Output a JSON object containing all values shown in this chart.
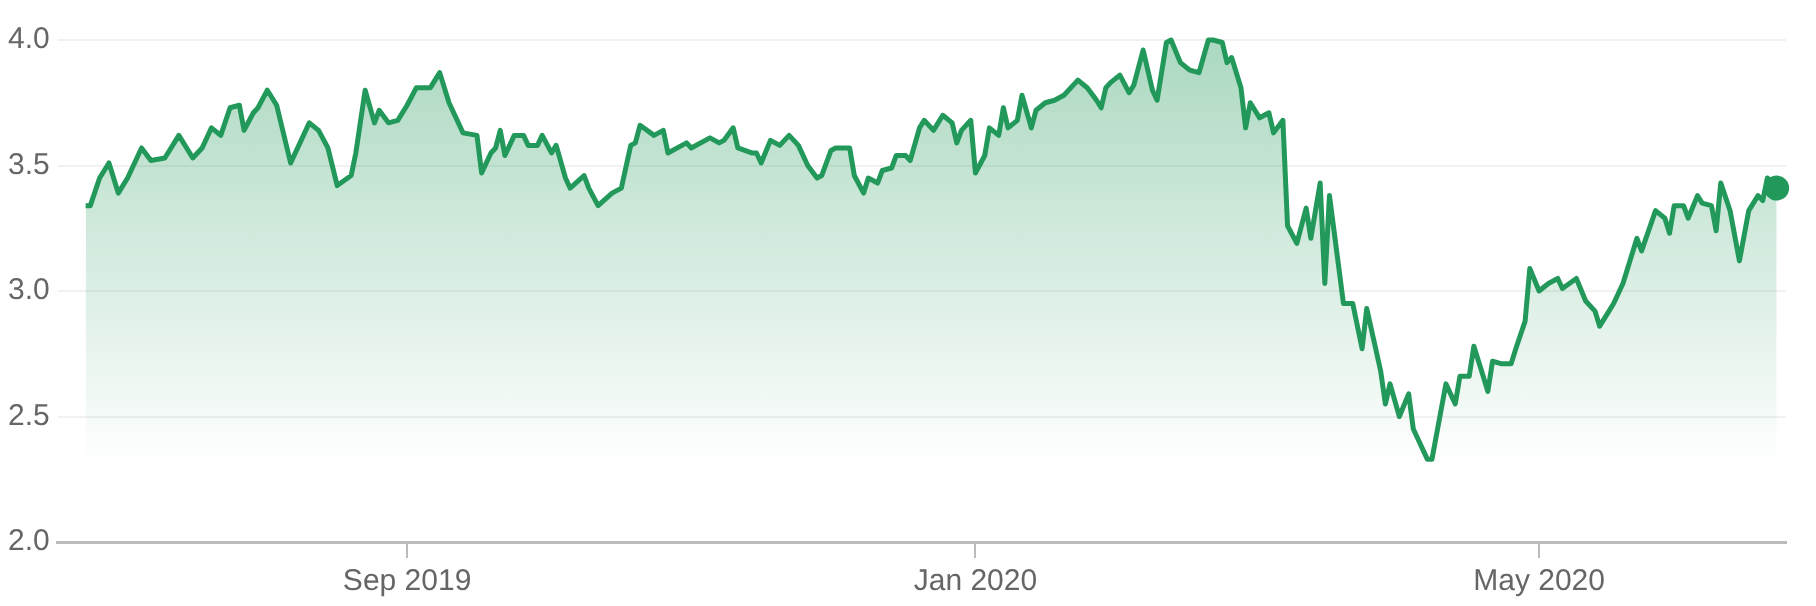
{
  "chart_data": {
    "type": "area",
    "color": "#22995a",
    "grid": "y",
    "xlim": [
      "2019-06-18",
      "2020-06-23"
    ],
    "xticks": [
      {
        "value": "2019-09-01",
        "label": "Sep 2019"
      },
      {
        "value": "2020-01-01",
        "label": "Jan 2020"
      },
      {
        "value": "2020-05-01",
        "label": "May 2020"
      }
    ],
    "ylim": [
      2.0,
      4.0
    ],
    "yticks": [
      {
        "value": 2.0,
        "label": "2.0"
      },
      {
        "value": 2.5,
        "label": "2.5"
      },
      {
        "value": 3.0,
        "label": "3.0"
      },
      {
        "value": 3.5,
        "label": "3.5"
      },
      {
        "value": 4.0,
        "label": "4.0"
      }
    ],
    "x": [
      "2019-06-24",
      "2019-06-25",
      "2019-06-27",
      "2019-06-29",
      "2019-07-01",
      "2019-07-03",
      "2019-07-06",
      "2019-07-08",
      "2019-07-11",
      "2019-07-14",
      "2019-07-17",
      "2019-07-19",
      "2019-07-21",
      "2019-07-23",
      "2019-07-25",
      "2019-07-27",
      "2019-07-28",
      "2019-07-30",
      "2019-07-31",
      "2019-08-02",
      "2019-08-04",
      "2019-08-07",
      "2019-08-11",
      "2019-08-13",
      "2019-08-15",
      "2019-08-17",
      "2019-08-20",
      "2019-08-21",
      "2019-08-23",
      "2019-08-25",
      "2019-08-26",
      "2019-08-28",
      "2019-08-30",
      "2019-09-01",
      "2019-09-03",
      "2019-09-06",
      "2019-09-08",
      "2019-09-10",
      "2019-09-13",
      "2019-09-16",
      "2019-09-17",
      "2019-09-19",
      "2019-09-20",
      "2019-09-21",
      "2019-09-22",
      "2019-09-24",
      "2019-09-26",
      "2019-09-27",
      "2019-09-29",
      "2019-09-30",
      "2019-10-02",
      "2019-10-03",
      "2019-10-05",
      "2019-10-06",
      "2019-10-09",
      "2019-10-10",
      "2019-10-12",
      "2019-10-15",
      "2019-10-17",
      "2019-10-19",
      "2019-10-20",
      "2019-10-21",
      "2019-10-24",
      "2019-10-26",
      "2019-10-27",
      "2019-10-30",
      "2019-10-31",
      "2019-11-01",
      "2019-11-05",
      "2019-11-07",
      "2019-11-08",
      "2019-11-10",
      "2019-11-11",
      "2019-11-14",
      "2019-11-15",
      "2019-11-16",
      "2019-11-18",
      "2019-11-20",
      "2019-11-22",
      "2019-11-24",
      "2019-11-26",
      "2019-11-28",
      "2019-11-29",
      "2019-12-01",
      "2019-12-02",
      "2019-12-05",
      "2019-12-06",
      "2019-12-08",
      "2019-12-09",
      "2019-12-11",
      "2019-12-12",
      "2019-12-14",
      "2019-12-15",
      "2019-12-17",
      "2019-12-18",
      "2019-12-20",
      "2019-12-21",
      "2019-12-23",
      "2019-12-25",
      "2019-12-27",
      "2019-12-28",
      "2019-12-29",
      "2019-12-31",
      "2020-01-01",
      "2020-01-03",
      "2020-01-04",
      "2020-01-06",
      "2020-01-07",
      "2020-01-08",
      "2020-01-10",
      "2020-01-11",
      "2020-01-13",
      "2020-01-14",
      "2020-01-16",
      "2020-01-18",
      "2020-01-20",
      "2020-01-23",
      "2020-01-25",
      "2020-01-27",
      "2020-01-28",
      "2020-01-29",
      "2020-01-30",
      "2020-02-01",
      "2020-02-03",
      "2020-02-04",
      "2020-02-06",
      "2020-02-08",
      "2020-02-09",
      "2020-02-11",
      "2020-02-12",
      "2020-02-14",
      "2020-02-16",
      "2020-02-18",
      "2020-02-20",
      "2020-02-21",
      "2020-02-23",
      "2020-02-24",
      "2020-02-25",
      "2020-02-27",
      "2020-02-28",
      "2020-02-29",
      "2020-03-02",
      "2020-03-04",
      "2020-03-05",
      "2020-03-07",
      "2020-03-08",
      "2020-03-10",
      "2020-03-12",
      "2020-03-13",
      "2020-03-15",
      "2020-03-16",
      "2020-03-17",
      "2020-03-20",
      "2020-03-22",
      "2020-03-24",
      "2020-03-25",
      "2020-03-28",
      "2020-03-29",
      "2020-03-30",
      "2020-04-01",
      "2020-04-03",
      "2020-04-04",
      "2020-04-07",
      "2020-04-08",
      "2020-04-11",
      "2020-04-13",
      "2020-04-14",
      "2020-04-16",
      "2020-04-17",
      "2020-04-19",
      "2020-04-20",
      "2020-04-21",
      "2020-04-23",
      "2020-04-25",
      "2020-04-26",
      "2020-04-28",
      "2020-04-29",
      "2020-05-01",
      "2020-05-03",
      "2020-05-05",
      "2020-05-06",
      "2020-05-09",
      "2020-05-11",
      "2020-05-13",
      "2020-05-14",
      "2020-05-16",
      "2020-05-17",
      "2020-05-19",
      "2020-05-22",
      "2020-05-23",
      "2020-05-26",
      "2020-05-28",
      "2020-05-29",
      "2020-05-30",
      "2020-06-01",
      "2020-06-02",
      "2020-06-04",
      "2020-06-05",
      "2020-06-07",
      "2020-06-08",
      "2020-06-09",
      "2020-06-11",
      "2020-06-13",
      "2020-06-15",
      "2020-06-17",
      "2020-06-18",
      "2020-06-19",
      "2020-06-21"
    ],
    "values": [
      3.34,
      3.34,
      3.45,
      3.51,
      3.39,
      3.45,
      3.57,
      3.52,
      3.53,
      3.62,
      3.53,
      3.57,
      3.65,
      3.62,
      3.73,
      3.74,
      3.64,
      3.71,
      3.73,
      3.8,
      3.74,
      3.51,
      3.67,
      3.64,
      3.57,
      3.42,
      3.46,
      3.55,
      3.8,
      3.67,
      3.72,
      3.67,
      3.68,
      3.74,
      3.81,
      3.81,
      3.87,
      3.75,
      3.63,
      3.62,
      3.47,
      3.55,
      3.57,
      3.64,
      3.54,
      3.62,
      3.62,
      3.58,
      3.58,
      3.62,
      3.55,
      3.58,
      3.45,
      3.41,
      3.46,
      3.41,
      3.34,
      3.39,
      3.41,
      3.58,
      3.59,
      3.66,
      3.62,
      3.64,
      3.55,
      3.58,
      3.59,
      3.57,
      3.61,
      3.59,
      3.6,
      3.65,
      3.57,
      3.55,
      3.55,
      3.51,
      3.6,
      3.58,
      3.62,
      3.58,
      3.5,
      3.45,
      3.46,
      3.56,
      3.57,
      3.57,
      3.46,
      3.39,
      3.45,
      3.43,
      3.48,
      3.49,
      3.54,
      3.54,
      3.52,
      3.65,
      3.68,
      3.64,
      3.7,
      3.67,
      3.59,
      3.64,
      3.68,
      3.47,
      3.54,
      3.65,
      3.62,
      3.73,
      3.65,
      3.68,
      3.78,
      3.65,
      3.72,
      3.75,
      3.76,
      3.78,
      3.84,
      3.81,
      3.76,
      3.73,
      3.81,
      3.83,
      3.86,
      3.79,
      3.82,
      3.96,
      3.8,
      3.76,
      3.99,
      4.0,
      3.91,
      3.88,
      3.87,
      4.0,
      4.0,
      3.99,
      3.91,
      3.93,
      3.81,
      3.65,
      3.75,
      3.69,
      3.71,
      3.63,
      3.68,
      3.26,
      3.19,
      3.33,
      3.21,
      3.43,
      3.03,
      3.38,
      2.95,
      2.95,
      2.77,
      2.93,
      2.68,
      2.55,
      2.63,
      2.5,
      2.59,
      2.45,
      2.33,
      2.33,
      2.63,
      2.55,
      2.66,
      2.66,
      2.78,
      2.66,
      2.6,
      2.72,
      2.71,
      2.71,
      2.77,
      2.88,
      3.09,
      3.0,
      3.03,
      3.05,
      3.01,
      3.05,
      2.96,
      2.92,
      2.86,
      2.92,
      2.95,
      3.03,
      3.21,
      3.16,
      3.32,
      3.29,
      3.23,
      3.34,
      3.34,
      3.29,
      3.38,
      3.35,
      3.34,
      3.24,
      3.43,
      3.32,
      3.12,
      3.32,
      3.38,
      3.36,
      3.45,
      3.41
    ]
  }
}
